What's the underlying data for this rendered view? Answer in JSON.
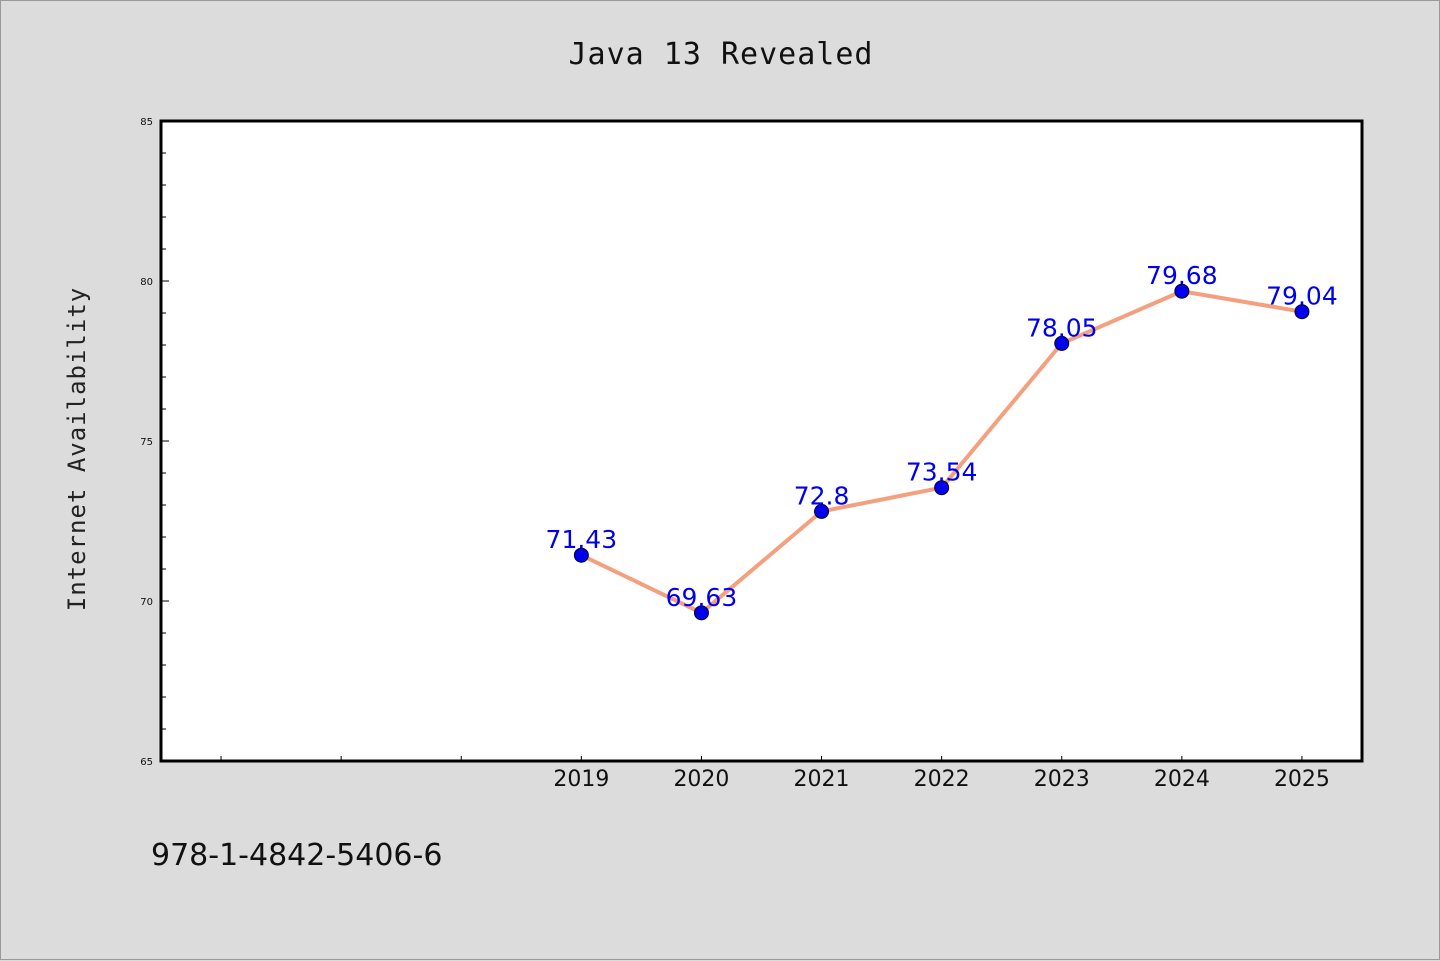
{
  "chart_data": {
    "type": "line",
    "title": "Java 13 Revealed",
    "ylabel": "Internet Availability",
    "xlabel": "",
    "x": [
      "2019",
      "2020",
      "2021",
      "2022",
      "2023",
      "2024",
      "2025"
    ],
    "series": [
      {
        "values": [
          71.43,
          69.63,
          72.8,
          73.54,
          78.05,
          79.68,
          79.04
        ],
        "data_labels": [
          "71.43",
          "69.63",
          "72.8",
          "73.54",
          "78.05",
          "79.68",
          "79.04"
        ],
        "line_color": "#f4a07e",
        "marker_color": "#0000ee"
      }
    ],
    "yticks": [
      "65",
      "70",
      "75",
      "80",
      "85"
    ],
    "ylim": [
      65,
      85
    ],
    "x_slots": 10,
    "x_first_data_slot": 3,
    "grid": false,
    "legend": "none"
  },
  "footnote": "978-1-4842-5406-6",
  "colors": {
    "background": "#dcdcdc",
    "plot_background": "#ffffff",
    "axis": "#000000"
  }
}
